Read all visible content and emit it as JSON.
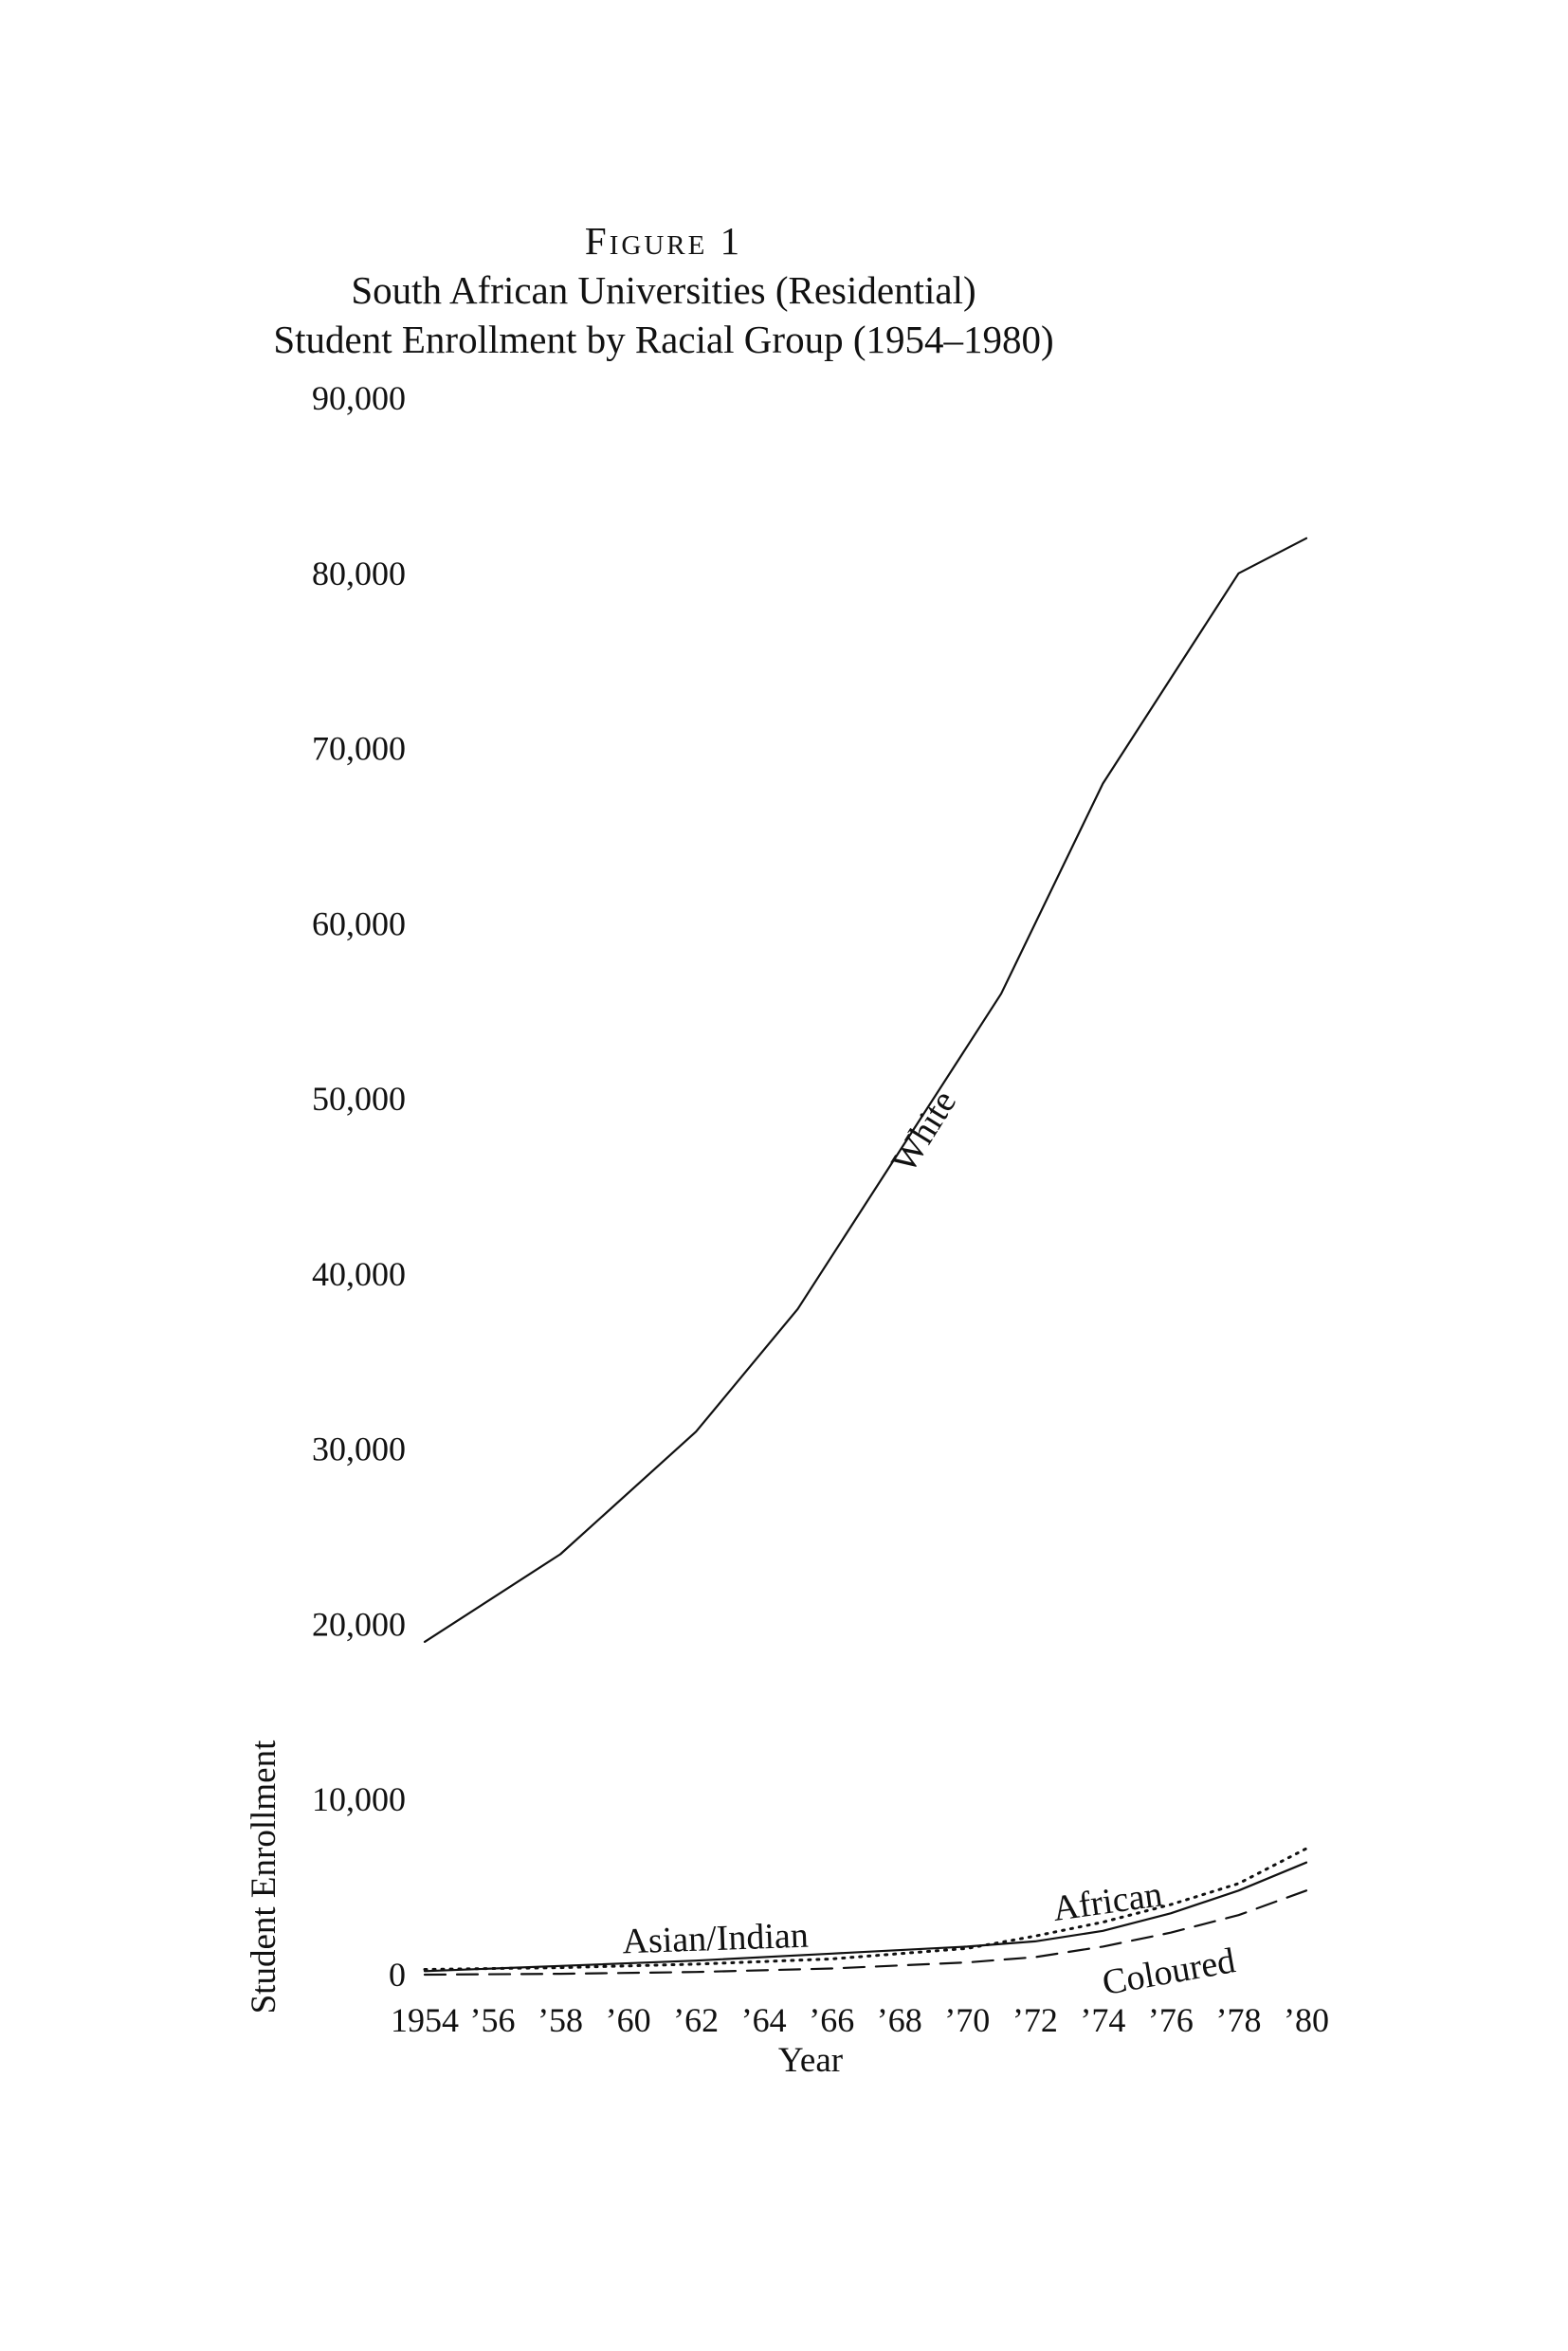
{
  "figure_label": "Figure 1",
  "title_line1": "South African Universities (Residential)",
  "title_line2": "Student Enrollment by Racial Group (1954–1980)",
  "chart_data": {
    "type": "line",
    "title": "South African Universities (Residential) Student Enrollment by Racial Group (1954–1980)",
    "xlabel": "Year",
    "ylabel": "Student Enrollment",
    "ylim": [
      0,
      90000
    ],
    "xlim": [
      1954,
      1980
    ],
    "grid": false,
    "x_tick_labels": [
      "1954",
      "’56",
      "’58",
      "’60",
      "’62",
      "’64",
      "’66",
      "’68",
      "’70",
      "’72",
      "’74",
      "’76",
      "’78",
      "’80"
    ],
    "y_tick_labels": [
      "0",
      "10,000",
      "20,000",
      "30,000",
      "40,000",
      "50,000",
      "60,000",
      "70,000",
      "80,000",
      "90,000"
    ],
    "series": [
      {
        "name": "White",
        "style": "solid",
        "x": [
          1954,
          1958,
          1962,
          1965,
          1968,
          1971,
          1974,
          1978,
          1980
        ],
        "y": [
          19000,
          24000,
          31000,
          38000,
          47000,
          56000,
          68000,
          80000,
          82000
        ]
      },
      {
        "name": "Asian/Indian",
        "style": "solid",
        "x": [
          1954,
          1958,
          1962,
          1966,
          1970,
          1972,
          1974,
          1976,
          1978,
          1980
        ],
        "y": [
          200,
          500,
          800,
          1200,
          1600,
          1900,
          2500,
          3500,
          4800,
          6400
        ]
      },
      {
        "name": "African",
        "style": "dotted",
        "x": [
          1954,
          1958,
          1962,
          1966,
          1970,
          1972,
          1974,
          1976,
          1978,
          1980
        ],
        "y": [
          300,
          400,
          600,
          900,
          1500,
          2200,
          3000,
          4000,
          5200,
          7200
        ]
      },
      {
        "name": "Coloured",
        "style": "dashed",
        "x": [
          1954,
          1958,
          1962,
          1966,
          1970,
          1972,
          1974,
          1976,
          1978,
          1980
        ],
        "y": [
          0,
          50,
          150,
          350,
          700,
          1000,
          1600,
          2400,
          3400,
          4800
        ]
      }
    ]
  }
}
